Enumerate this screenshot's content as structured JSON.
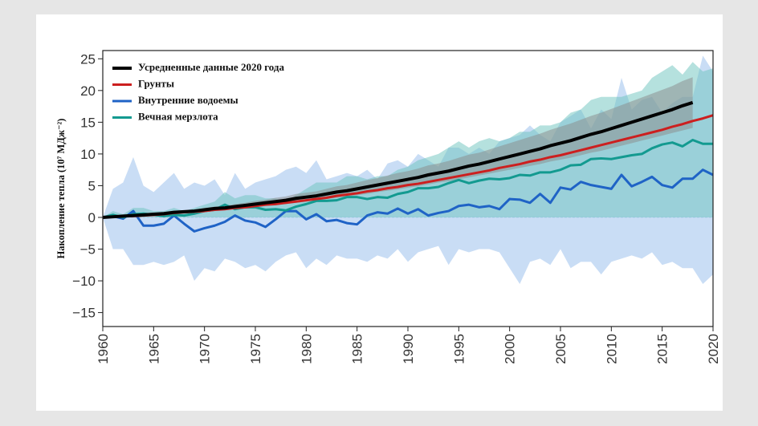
{
  "chart_data": {
    "type": "line",
    "y_label": "Накопление тепла (10⁷ МДж⁻²)",
    "x": [
      1960,
      1961,
      1962,
      1963,
      1964,
      1965,
      1966,
      1967,
      1968,
      1969,
      1970,
      1971,
      1972,
      1973,
      1974,
      1975,
      1976,
      1977,
      1978,
      1979,
      1980,
      1981,
      1982,
      1983,
      1984,
      1985,
      1986,
      1987,
      1988,
      1989,
      1990,
      1991,
      1992,
      1993,
      1994,
      1995,
      1996,
      1997,
      1998,
      1999,
      2000,
      2001,
      2002,
      2003,
      2004,
      2005,
      2006,
      2007,
      2008,
      2009,
      2010,
      2011,
      2012,
      2013,
      2014,
      2015,
      2016,
      2017,
      2018,
      2019,
      2020
    ],
    "xlim": [
      1960,
      2020
    ],
    "xticks": [
      1960,
      1965,
      1970,
      1975,
      1980,
      1985,
      1990,
      1995,
      2000,
      2005,
      2010,
      2015,
      2020
    ],
    "ylim": [
      -17.2,
      26.3
    ],
    "yticks": [
      {
        "value": -15,
        "label": "−15"
      },
      {
        "value": -10,
        "label": "−10"
      },
      {
        "value": -5,
        "label": "−5"
      },
      0,
      5,
      10,
      15,
      20,
      25
    ],
    "legend": "upper left",
    "series": [
      {
        "name": "Усредненные данные 2020 года",
        "color": "#000000",
        "width": 4,
        "values": [
          0,
          0.1,
          0.2,
          0.3,
          0.4,
          0.5,
          0.6,
          0.8,
          0.9,
          1.0,
          1.2,
          1.4,
          1.5,
          1.7,
          1.9,
          2.1,
          2.3,
          2.5,
          2.7,
          3.0,
          3.2,
          3.4,
          3.7,
          4.0,
          4.2,
          4.5,
          4.8,
          5.1,
          5.4,
          5.7,
          6.0,
          6.3,
          6.7,
          7.0,
          7.3,
          7.7,
          8.1,
          8.4,
          8.8,
          9.2,
          9.6,
          10.0,
          10.4,
          10.8,
          11.3,
          11.7,
          12.1,
          12.6,
          13.1,
          13.5,
          14.0,
          14.5,
          15.0,
          15.5,
          16.0,
          16.5,
          17.0,
          17.6,
          18.1,
          null,
          null
        ]
      },
      {
        "name": "Грунты",
        "color": "#cc1f1f",
        "width": 3,
        "values": [
          0,
          0.1,
          0.2,
          0.2,
          0.3,
          0.4,
          0.5,
          0.7,
          0.8,
          0.9,
          1.0,
          1.2,
          1.3,
          1.5,
          1.6,
          1.8,
          2.0,
          2.1,
          2.3,
          2.5,
          2.7,
          2.9,
          3.1,
          3.4,
          3.6,
          3.8,
          4.1,
          4.3,
          4.6,
          4.8,
          5.1,
          5.3,
          5.6,
          5.9,
          6.2,
          6.5,
          6.8,
          7.1,
          7.4,
          7.8,
          8.1,
          8.4,
          8.8,
          9.1,
          9.5,
          9.8,
          10.2,
          10.6,
          11.0,
          11.4,
          11.8,
          12.2,
          12.6,
          13.0,
          13.4,
          13.8,
          14.3,
          14.7,
          15.2,
          15.6,
          16.1
        ]
      },
      {
        "name": "Внутренние водоемы",
        "color": "#1f63c6",
        "width": 3,
        "values": [
          0,
          0.2,
          -0.2,
          1.0,
          -1.3,
          -1.3,
          -1.0,
          0.3,
          -1.0,
          -2.2,
          -1.7,
          -1.3,
          -0.7,
          0.3,
          -0.5,
          -0.8,
          -1.5,
          -0.3,
          1.0,
          1.0,
          -0.3,
          0.5,
          -0.6,
          -0.4,
          -0.9,
          -1.1,
          0.3,
          0.8,
          0.6,
          1.4,
          0.6,
          1.3,
          0.3,
          0.7,
          1.0,
          1.8,
          2.0,
          1.6,
          1.8,
          1.3,
          2.9,
          2.8,
          2.3,
          3.7,
          2.3,
          4.7,
          4.4,
          5.6,
          5.1,
          4.8,
          4.5,
          6.7,
          4.9,
          5.6,
          6.4,
          5.1,
          4.7,
          6.1,
          6.1,
          7.5,
          6.7
        ]
      },
      {
        "name": "Вечная мерзлота",
        "color": "#139a90",
        "width": 3,
        "values": [
          0,
          0.4,
          0.0,
          0.5,
          0.6,
          0.4,
          0.2,
          0.4,
          0.3,
          0.6,
          1.0,
          1.2,
          2.0,
          1.3,
          1.6,
          1.6,
          1.2,
          1.3,
          1.1,
          1.7,
          2.1,
          2.6,
          2.6,
          2.7,
          3.2,
          3.2,
          2.9,
          3.2,
          3.1,
          3.7,
          4.0,
          4.6,
          4.6,
          4.8,
          5.4,
          5.9,
          5.4,
          5.8,
          6.1,
          6.0,
          6.2,
          6.7,
          6.6,
          7.1,
          7.1,
          7.5,
          8.2,
          8.3,
          9.2,
          9.3,
          9.2,
          9.5,
          9.8,
          10.0,
          10.9,
          11.5,
          11.8,
          11.2,
          12.2,
          11.6,
          11.6
        ]
      }
    ],
    "bands": [
      {
        "color": "#bcd5f2",
        "upper": [
          0,
          4.5,
          5.5,
          9.5,
          5,
          4,
          5.5,
          7,
          4.5,
          5.5,
          5,
          6,
          3.5,
          7,
          4.5,
          5.5,
          6,
          6.5,
          7.5,
          8,
          7,
          9,
          6,
          6.5,
          7,
          6.5,
          7.5,
          6,
          8.5,
          9,
          8,
          10,
          9,
          8,
          11,
          11,
          10,
          11,
          10,
          12,
          12.5,
          13,
          14.5,
          13,
          12,
          15,
          16,
          17,
          14,
          17,
          15.5,
          22,
          17,
          18.5,
          19,
          16.5,
          18,
          19,
          19,
          25.5,
          23
        ],
        "lower": [
          0,
          -5,
          -5,
          -7.5,
          -7.5,
          -7,
          -7.5,
          -7,
          -6,
          -10,
          -8,
          -8.5,
          -6.5,
          -7,
          -8,
          -7.5,
          -8.5,
          -7,
          -6,
          -5.5,
          -8,
          -6.5,
          -7.5,
          -6,
          -6.5,
          -6.5,
          -7,
          -6,
          -6.5,
          -5,
          -7,
          -5.5,
          -5,
          -4.5,
          -7.5,
          -5,
          -5.5,
          -5,
          -5,
          -5.5,
          -8,
          -10.5,
          -7,
          -6.5,
          -7.5,
          -5,
          -8,
          -7,
          -7,
          -9,
          -7,
          -6.5,
          -6,
          -6.5,
          -5.5,
          -7.5,
          -7,
          -8,
          -8,
          -10.5,
          -9
        ]
      },
      {
        "color": "#6cc4bd",
        "upper": [
          0,
          1,
          0.5,
          1.5,
          1.5,
          1,
          1,
          1.5,
          1,
          1.5,
          2,
          2.5,
          4,
          3,
          3.5,
          3.5,
          3,
          3,
          2.5,
          3.5,
          4.5,
          5.5,
          5.5,
          5.5,
          6.5,
          6.5,
          6,
          6.5,
          6.5,
          7.5,
          8,
          9,
          9.5,
          10,
          11,
          12,
          11,
          12,
          12.5,
          12,
          12.5,
          13.5,
          13.5,
          14.5,
          14.5,
          15,
          16.5,
          17,
          18.5,
          19,
          19,
          19,
          19.5,
          20,
          22,
          23,
          24,
          22.5,
          24.5,
          23,
          23.5
        ],
        "lower": [
          0,
          0,
          0,
          0,
          0,
          0,
          0,
          0,
          0,
          0,
          0,
          0,
          0,
          0,
          0,
          0,
          0,
          0,
          0,
          0,
          0,
          0,
          0,
          0,
          0,
          0,
          0,
          0,
          0,
          0,
          0,
          0,
          0,
          0,
          0,
          0,
          0,
          0,
          0,
          0,
          0,
          0,
          0,
          0,
          0,
          0,
          0,
          0,
          0,
          0,
          0,
          0,
          0,
          0,
          0,
          0,
          0,
          0,
          0,
          0,
          0
        ]
      },
      {
        "color": "#8a8a8a",
        "upper": [
          0,
          0.1,
          0.2,
          0.4,
          0.5,
          0.6,
          0.7,
          1.0,
          1.1,
          1.2,
          1.5,
          1.7,
          1.8,
          2.1,
          2.3,
          2.6,
          2.8,
          3.1,
          3.3,
          3.7,
          3.9,
          4.1,
          4.5,
          4.9,
          5.1,
          5.5,
          5.9,
          6.2,
          6.6,
          7.0,
          7.3,
          7.7,
          8.2,
          8.5,
          8.9,
          9.4,
          9.9,
          10.2,
          10.7,
          11.2,
          11.7,
          12.2,
          12.7,
          13.2,
          13.8,
          14.3,
          14.8,
          15.4,
          16.0,
          16.5,
          17.1,
          17.7,
          18.3,
          18.9,
          19.5,
          20.1,
          20.7,
          21.5,
          22.1,
          null,
          null
        ],
        "lower": [
          0,
          0.1,
          0.2,
          0.2,
          0.3,
          0.4,
          0.5,
          0.6,
          0.7,
          0.8,
          0.9,
          1.1,
          1.2,
          1.3,
          1.5,
          1.6,
          1.8,
          2.0,
          2.1,
          2.3,
          2.5,
          2.7,
          2.9,
          3.1,
          3.3,
          3.5,
          3.7,
          4.0,
          4.2,
          4.4,
          4.7,
          4.9,
          5.2,
          5.5,
          5.7,
          6.0,
          6.3,
          6.6,
          6.9,
          7.2,
          7.5,
          7.8,
          8.1,
          8.4,
          8.8,
          9.1,
          9.4,
          9.8,
          10.2,
          10.5,
          10.9,
          11.3,
          11.7,
          12.1,
          12.5,
          12.9,
          13.3,
          13.7,
          14.1,
          null,
          null
        ]
      }
    ]
  }
}
